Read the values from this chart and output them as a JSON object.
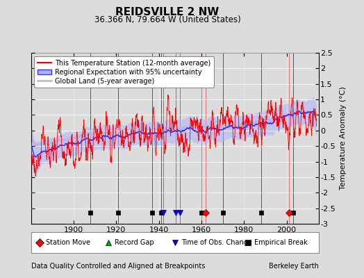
{
  "title": "REIDSVILLE 2 NW",
  "subtitle": "36.366 N, 79.664 W (United States)",
  "xlabel_bottom": "Data Quality Controlled and Aligned at Breakpoints",
  "xlabel_right": "Berkeley Earth",
  "ylabel": "Temperature Anomaly (°C)",
  "xlim": [
    1880,
    2015
  ],
  "ylim": [
    -3.0,
    2.5
  ],
  "yticks": [
    -3,
    -2.5,
    -2,
    -1.5,
    -1,
    -0.5,
    0,
    0.5,
    1,
    1.5,
    2,
    2.5
  ],
  "xticks": [
    1900,
    1920,
    1940,
    1960,
    1980,
    2000
  ],
  "bg_color": "#dcdcdc",
  "plot_bg_color": "#dcdcdc",
  "station_moves": [
    1962,
    2001
  ],
  "record_gaps": [],
  "obs_changes": [
    1942,
    1948,
    1950
  ],
  "empirical_breaks": [
    1908,
    1921,
    1937,
    1941,
    1960,
    1970,
    1988,
    2003
  ],
  "marker_y": -2.65,
  "uncertainty_color": "#b0b0ff",
  "regional_color": "#3333ff",
  "station_color": "#ff0000",
  "global_color": "#c0c0c0"
}
